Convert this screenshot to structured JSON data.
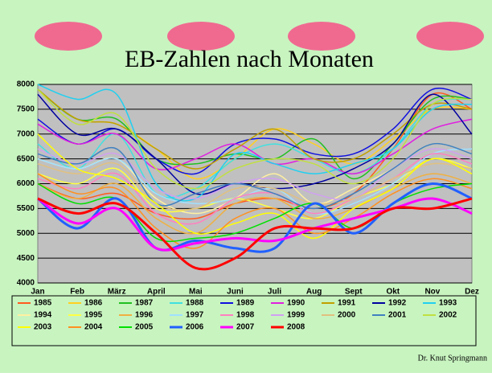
{
  "chart_data": {
    "type": "line",
    "title": "EB-Zahlen nach Monaten",
    "footer": "Dr. Knut Springmann",
    "categories": [
      "Jan",
      "Feb",
      "März",
      "April",
      "Mai",
      "Juni",
      "Juli",
      "Aug",
      "Sept",
      "Okt",
      "Nov",
      "Dez"
    ],
    "ylim": [
      4000,
      8000
    ],
    "yticks": [
      4000,
      4500,
      5000,
      5500,
      6000,
      6500,
      7000,
      7500,
      8000
    ],
    "grid": true,
    "smooth": true,
    "series": [
      {
        "name": "1985",
        "color": "#ff5a1e",
        "values": [
          6000,
          5700,
          5800,
          5400,
          5300,
          5600,
          5700,
          5500,
          5800,
          6700,
          7800,
          7500
        ]
      },
      {
        "name": "1986",
        "color": "#ffd020",
        "values": [
          7900,
          7300,
          7200,
          6700,
          6100,
          6500,
          7100,
          6800,
          6400,
          6900,
          7500,
          7500
        ]
      },
      {
        "name": "1987",
        "color": "#20c020",
        "values": [
          7900,
          7300,
          7300,
          6500,
          6400,
          6600,
          6500,
          6900,
          6100,
          6800,
          7700,
          7700
        ]
      },
      {
        "name": "1988",
        "color": "#40e0e0",
        "values": [
          6800,
          6300,
          7000,
          5800,
          5900,
          6500,
          6800,
          6500,
          6200,
          6700,
          7600,
          7700
        ]
      },
      {
        "name": "1989",
        "color": "#1010e0",
        "values": [
          7300,
          6800,
          7100,
          6500,
          6200,
          6800,
          6900,
          6600,
          6600,
          7100,
          7900,
          7700
        ]
      },
      {
        "name": "1990",
        "color": "#e020e0",
        "values": [
          7200,
          6800,
          7000,
          6300,
          6500,
          6800,
          6400,
          6500,
          6200,
          6600,
          7100,
          7300
        ]
      },
      {
        "name": "1991",
        "color": "#c0a000",
        "values": [
          7900,
          7300,
          7200,
          6700,
          6300,
          6700,
          7100,
          6500,
          6500,
          7000,
          7600,
          7500
        ]
      },
      {
        "name": "1992",
        "color": "#0000a0",
        "values": [
          7800,
          7000,
          7100,
          6500,
          5800,
          6000,
          5900,
          6000,
          6300,
          6800,
          7800,
          7000
        ]
      },
      {
        "name": "1993",
        "color": "#20d0f0",
        "values": [
          8000,
          7700,
          7800,
          6000,
          5700,
          6600,
          6400,
          6200,
          6400,
          6700,
          7500,
          7600
        ]
      },
      {
        "name": "1994",
        "color": "#fff0a0",
        "values": [
          6500,
          6300,
          6500,
          5700,
          5400,
          5700,
          6200,
          5600,
          5900,
          6300,
          6800,
          6600
        ]
      },
      {
        "name": "1995",
        "color": "#ffff40",
        "values": [
          6200,
          6000,
          6300,
          5500,
          5500,
          5700,
          5500,
          5300,
          5700,
          6000,
          6500,
          6300
        ]
      },
      {
        "name": "1996",
        "color": "#f0b040",
        "values": [
          6000,
          5700,
          6000,
          5300,
          5000,
          5600,
          5700,
          5300,
          5500,
          5900,
          6200,
          6000
        ]
      },
      {
        "name": "1997",
        "color": "#a0e0ff",
        "values": [
          6500,
          6300,
          6500,
          5800,
          5600,
          5700,
          5900,
          5400,
          5600,
          6000,
          6600,
          6700
        ]
      },
      {
        "name": "1998",
        "color": "#ff80c0",
        "values": [
          6100,
          5900,
          6200,
          5400,
          5200,
          5700,
          5800,
          5400,
          5700,
          6100,
          6600,
          6400
        ]
      },
      {
        "name": "1999",
        "color": "#d0a0f0",
        "values": [
          6700,
          6400,
          6600,
          5900,
          5700,
          6000,
          6100,
          5800,
          5700,
          6300,
          6700,
          6500
        ]
      },
      {
        "name": "2000",
        "color": "#e0c080",
        "values": [
          6400,
          6200,
          6400,
          5600,
          5500,
          5900,
          5900,
          5600,
          5700,
          6100,
          6400,
          6300
        ]
      },
      {
        "name": "2001",
        "color": "#4080c0",
        "values": [
          6600,
          6400,
          6700,
          5600,
          5800,
          6000,
          5800,
          5500,
          5800,
          6300,
          6800,
          6600
        ]
      },
      {
        "name": "2002",
        "color": "#c0e040",
        "values": [
          7900,
          7200,
          7400,
          6300,
          5900,
          6300,
          6500,
          6400,
          6000,
          6500,
          7600,
          7700
        ]
      },
      {
        "name": "2003",
        "color": "#ffff00",
        "values": [
          7000,
          6300,
          6100,
          5600,
          5000,
          5200,
          5400,
          4900,
          5500,
          5900,
          6500,
          6200
        ]
      },
      {
        "name": "2004",
        "color": "#ff9020",
        "values": [
          6200,
          5800,
          5900,
          5100,
          4700,
          5300,
          5500,
          5000,
          5300,
          5800,
          6100,
          5900
        ]
      },
      {
        "name": "2005",
        "color": "#00e000",
        "values": [
          6000,
          5600,
          5700,
          4900,
          4900,
          5000,
          5300,
          5600,
          5100,
          5600,
          5900,
          6000
        ]
      },
      {
        "name": "2006",
        "color": "#2060ff",
        "thick": true,
        "values": [
          5700,
          5100,
          5700,
          4700,
          4850,
          4700,
          4700,
          5600,
          5000,
          5600,
          6000,
          5700
        ]
      },
      {
        "name": "2007",
        "color": "#ff00ff",
        "thick": true,
        "values": [
          5700,
          5200,
          5500,
          4700,
          4800,
          4900,
          4850,
          5100,
          5300,
          5500,
          5700,
          5400
        ]
      },
      {
        "name": "2008",
        "color": "#ff0000",
        "thick": true,
        "values": [
          5700,
          5400,
          5600,
          5000,
          4300,
          4500,
          5100,
          5100,
          5100,
          5500,
          5500,
          5700
        ]
      }
    ]
  }
}
